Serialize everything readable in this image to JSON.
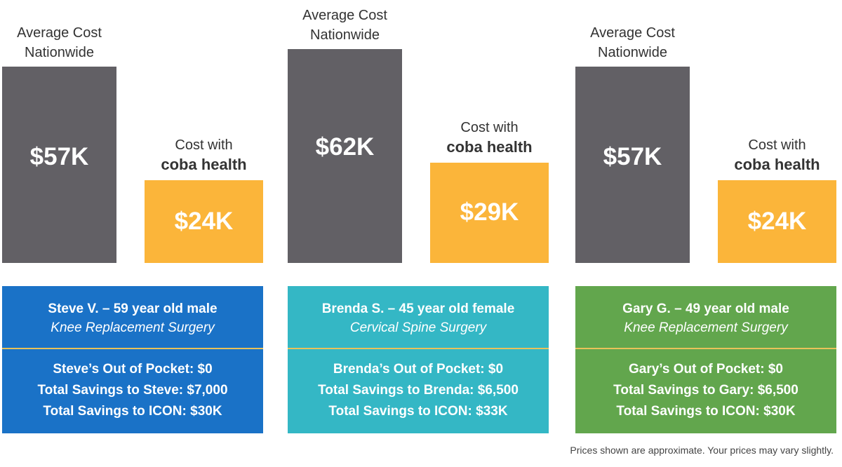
{
  "colors": {
    "average_bar": "#626065",
    "coba_bar": "#fbb53a",
    "card_blue": "#1a72c7",
    "card_teal": "#34b7c5",
    "card_green": "#62a64d"
  },
  "chart_data": [
    {
      "type": "bar",
      "categories": [
        "Average Cost Nationwide",
        "Cost with coba health"
      ],
      "values": [
        57,
        24
      ],
      "value_labels": [
        "$57K",
        "$24K"
      ],
      "unit": "$K",
      "patient": "Steve V. – 59 year old male",
      "procedure": "Knee Replacement Surgery",
      "details": [
        "Steve’s Out of Pocket: $0",
        "Total Savings to Steve: $7,000",
        "Total Savings to ICON: $30K"
      ]
    },
    {
      "type": "bar",
      "categories": [
        "Average Cost Nationwide",
        "Cost with coba health"
      ],
      "values": [
        62,
        29
      ],
      "value_labels": [
        "$62K",
        "$29K"
      ],
      "unit": "$K",
      "patient": "Brenda S. – 45 year old female",
      "procedure": "Cervical Spine Surgery",
      "details": [
        "Brenda’s Out of Pocket: $0",
        "Total Savings to Brenda: $6,500",
        "Total Savings to ICON: $33K"
      ]
    },
    {
      "type": "bar",
      "categories": [
        "Average Cost Nationwide",
        "Cost with coba health"
      ],
      "values": [
        57,
        24
      ],
      "value_labels": [
        "$57K",
        "$24K"
      ],
      "unit": "$K",
      "patient": "Gary G. – 49 year old male",
      "procedure": "Knee Replacement Surgery",
      "details": [
        "Gary’s Out of Pocket: $0",
        "Total Savings to Gary: $6,500",
        "Total Savings to ICON: $30K"
      ]
    }
  ],
  "labels": {
    "average_line1": "Average Cost",
    "average_line2": "Nationwide",
    "coba_line1": "Cost with",
    "coba_line2": "coba health"
  },
  "footnote": "Prices shown are approximate. Your prices may vary slightly."
}
